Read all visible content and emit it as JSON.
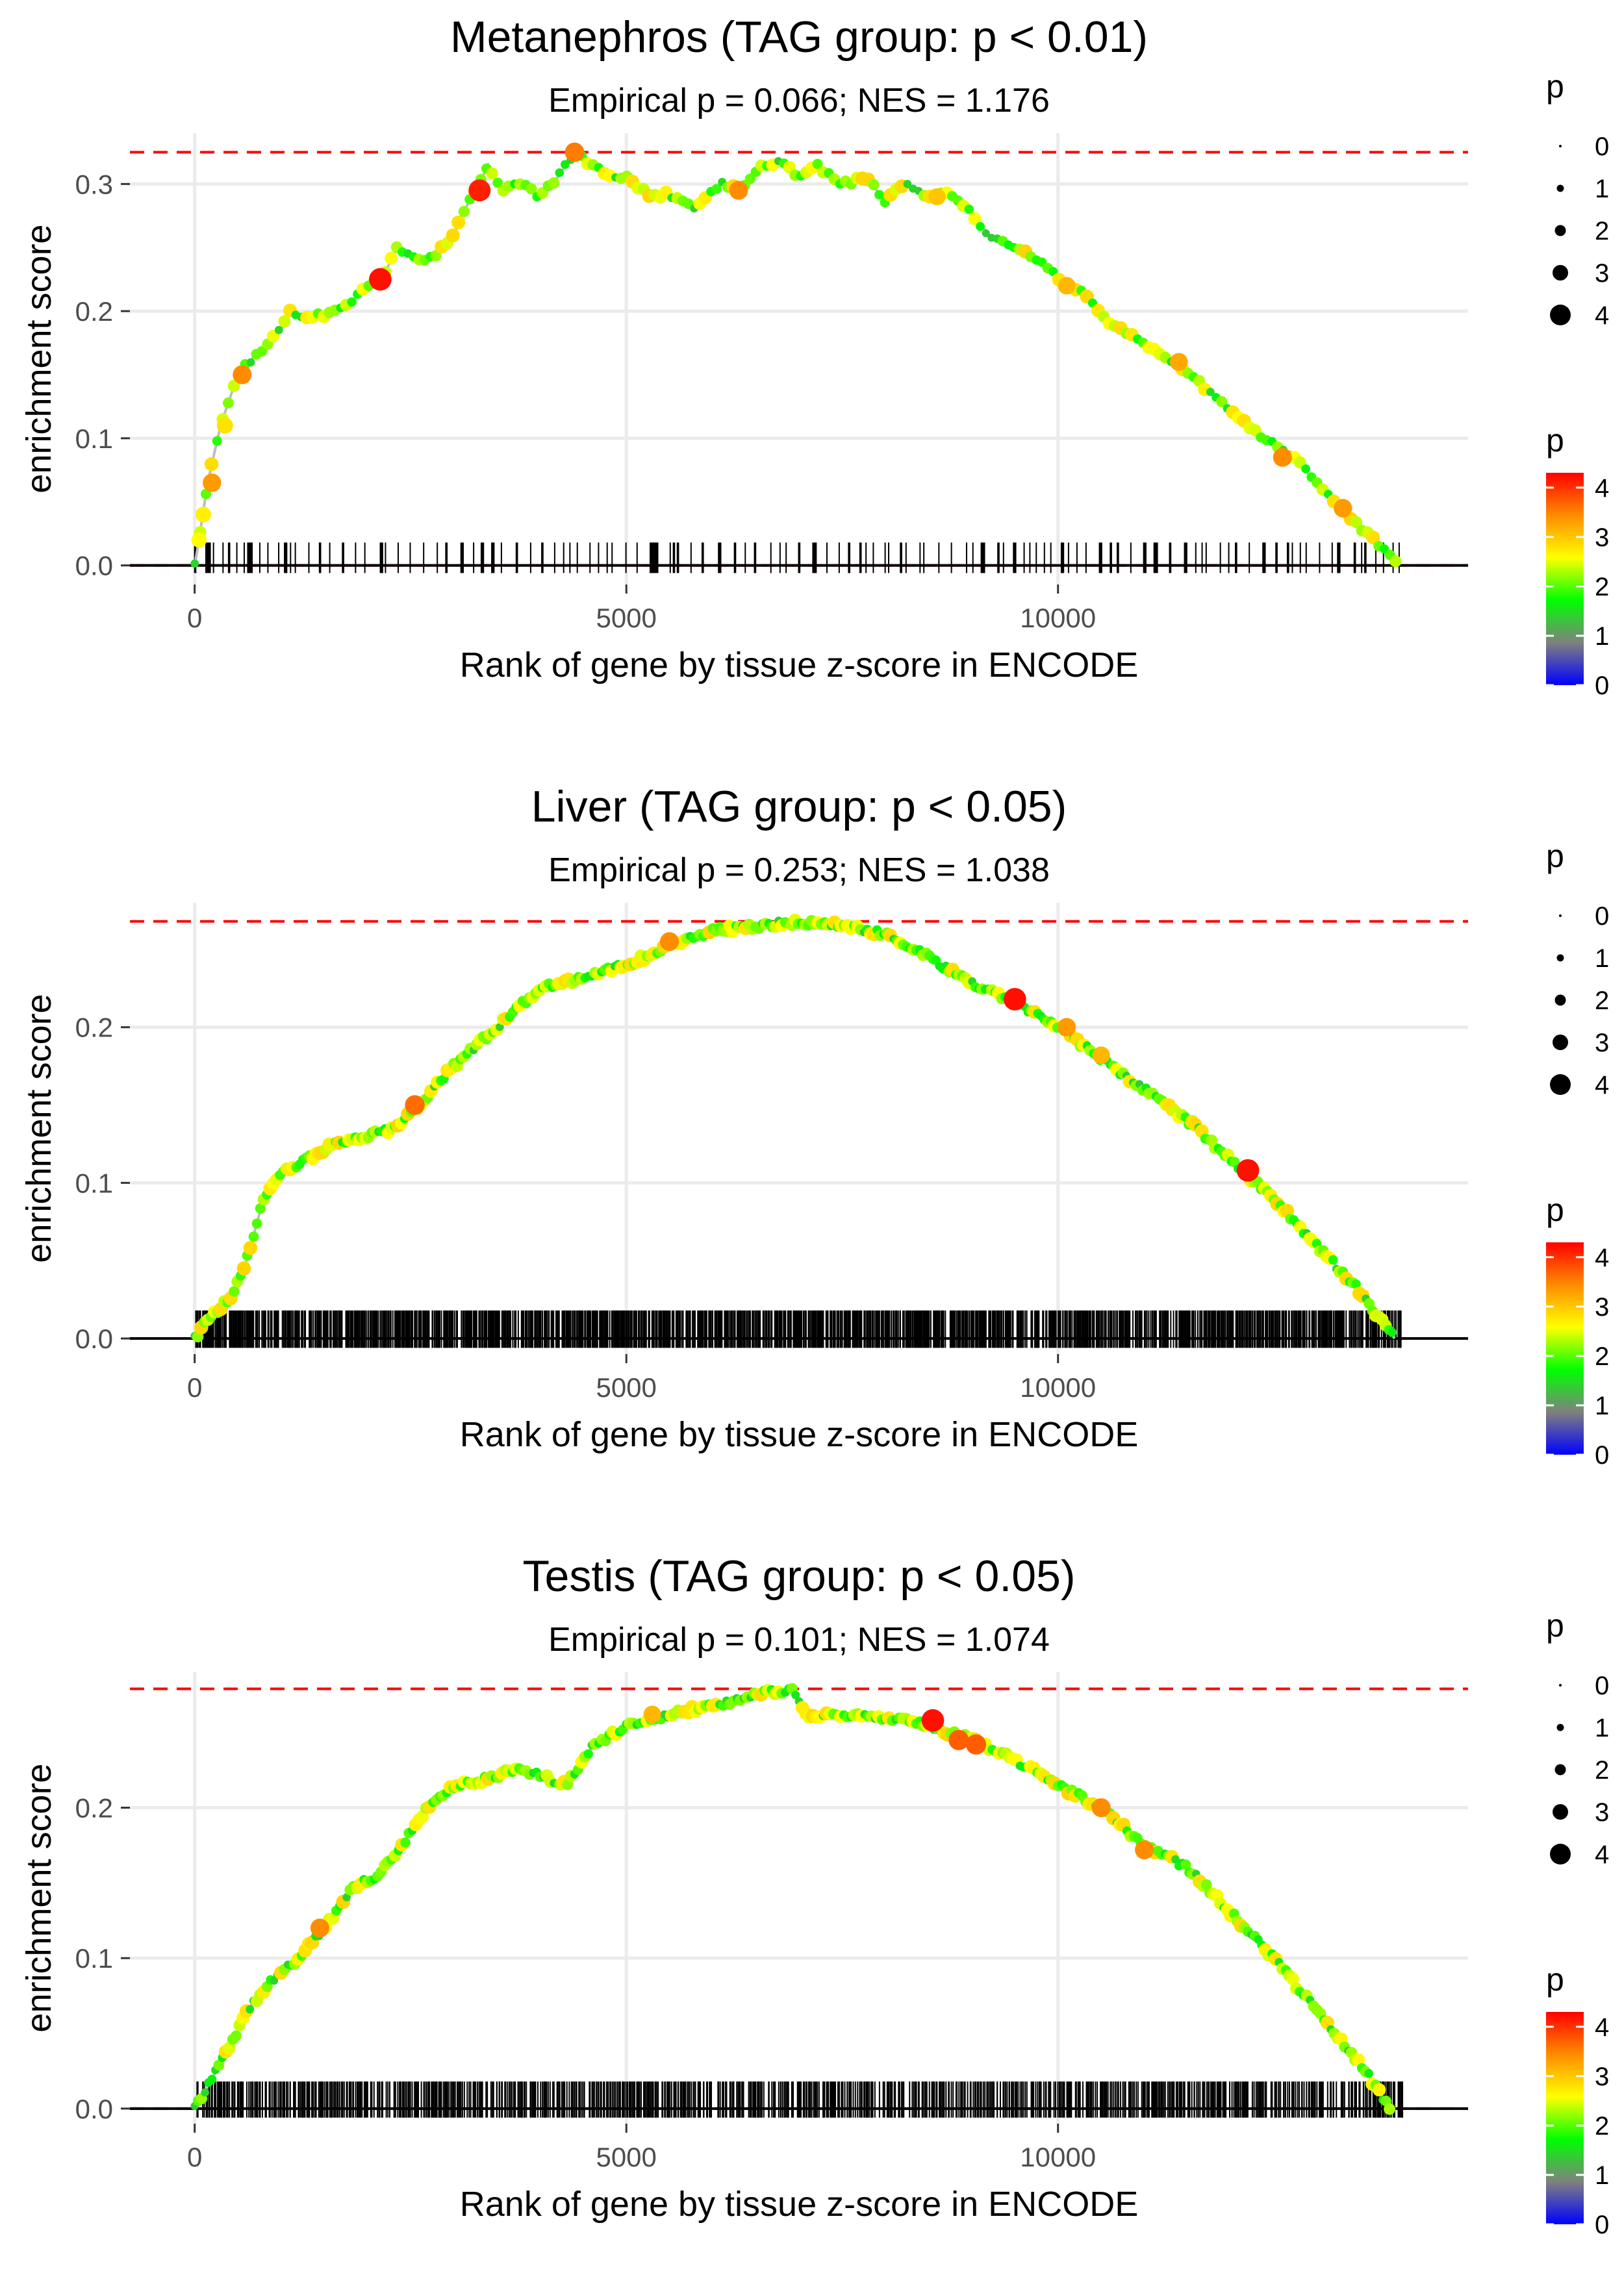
{
  "palette": {
    "ref_line": "#ff0000",
    "curve": "#bebebe",
    "grid": "#ebebeb",
    "axis_text": "#4d4d4d",
    "text": "#000000",
    "colorbar_stops": [
      "#0000ff",
      "#808080",
      "#00ff00",
      "#ffff00",
      "#ff8c00",
      "#ff0000"
    ]
  },
  "chart_data": [
    {
      "type": "line",
      "title": "Metanephros (TAG group: p < 0.01)",
      "subtitle": "Empirical p = 0.066; NES = 1.176",
      "xlabel": "Rank of gene by tissue z-score in ENCODE",
      "ylabel": "enrichment score",
      "xlim": [
        -750,
        14750
      ],
      "ylim": [
        -0.015,
        0.34
      ],
      "x_ticks": [
        0,
        5000,
        10000
      ],
      "x_tick_labels": [
        "0",
        "5000",
        "10000"
      ],
      "y_ticks": [
        0.0,
        0.1,
        0.2,
        0.3
      ],
      "y_tick_labels": [
        "0.0",
        "0.1",
        "0.2",
        "0.3"
      ],
      "max_es": 0.325,
      "min_es": 0.0,
      "n_genes": 14000,
      "n_hits": 170,
      "hit_sparsity": "sparse",
      "point_spacing": 65,
      "curve": [
        [
          0,
          0.0
        ],
        [
          50,
          0.02
        ],
        [
          150,
          0.065
        ],
        [
          300,
          0.11
        ],
        [
          500,
          0.15
        ],
        [
          700,
          0.165
        ],
        [
          1000,
          0.185
        ],
        [
          1100,
          0.2
        ],
        [
          1300,
          0.195
        ],
        [
          1600,
          0.198
        ],
        [
          1800,
          0.205
        ],
        [
          2000,
          0.22
        ],
        [
          2200,
          0.23
        ],
        [
          2350,
          0.25
        ],
        [
          2600,
          0.24
        ],
        [
          2800,
          0.245
        ],
        [
          3000,
          0.26
        ],
        [
          3200,
          0.29
        ],
        [
          3300,
          0.3
        ],
        [
          3400,
          0.315
        ],
        [
          3550,
          0.295
        ],
        [
          3800,
          0.3
        ],
        [
          4000,
          0.29
        ],
        [
          4200,
          0.305
        ],
        [
          4400,
          0.325
        ],
        [
          4700,
          0.31
        ],
        [
          5000,
          0.305
        ],
        [
          5300,
          0.29
        ],
        [
          5500,
          0.292
        ],
        [
          5800,
          0.28
        ],
        [
          6100,
          0.3
        ],
        [
          6300,
          0.295
        ],
        [
          6600,
          0.315
        ],
        [
          6800,
          0.318
        ],
        [
          7000,
          0.305
        ],
        [
          7200,
          0.315
        ],
        [
          7500,
          0.3
        ],
        [
          7800,
          0.305
        ],
        [
          8000,
          0.285
        ],
        [
          8200,
          0.3
        ],
        [
          8500,
          0.29
        ],
        [
          8700,
          0.295
        ],
        [
          8900,
          0.285
        ],
        [
          9200,
          0.26
        ],
        [
          9500,
          0.25
        ],
        [
          9800,
          0.24
        ],
        [
          10000,
          0.225
        ],
        [
          10300,
          0.215
        ],
        [
          10600,
          0.19
        ],
        [
          11000,
          0.175
        ],
        [
          11300,
          0.16
        ],
        [
          11700,
          0.14
        ],
        [
          12000,
          0.12
        ],
        [
          12400,
          0.1
        ],
        [
          12800,
          0.08
        ],
        [
          13200,
          0.05
        ],
        [
          13500,
          0.03
        ],
        [
          13800,
          0.01
        ],
        [
          13950,
          0.0
        ]
      ],
      "highlight_points": [
        [
          50,
          0.02,
          2.5
        ],
        [
          100,
          0.04,
          2.6
        ],
        [
          200,
          0.065,
          3.2
        ],
        [
          350,
          0.11,
          2.7
        ],
        [
          550,
          0.15,
          3.3
        ],
        [
          2150,
          0.225,
          4.1
        ],
        [
          3300,
          0.295,
          4.0
        ],
        [
          4400,
          0.325,
          3.4
        ],
        [
          6300,
          0.295,
          3.3
        ],
        [
          8600,
          0.29,
          2.9
        ],
        [
          10100,
          0.22,
          3.0
        ],
        [
          11400,
          0.16,
          3.1
        ],
        [
          12600,
          0.085,
          3.3
        ],
        [
          13300,
          0.045,
          3.2
        ]
      ],
      "legend_size_title": "p",
      "legend_size_labels": [
        "0",
        "1",
        "2",
        "3",
        "4"
      ],
      "legend_color_title": "p",
      "legend_color_labels": [
        "0",
        "1",
        "2",
        "3",
        "4"
      ]
    },
    {
      "type": "line",
      "title": "Liver (TAG group: p < 0.05)",
      "subtitle": "Empirical p = 0.253; NES = 1.038",
      "xlabel": "Rank of gene by tissue z-score in ENCODE",
      "ylabel": "enrichment score",
      "xlim": [
        -750,
        14750
      ],
      "ylim": [
        -0.01,
        0.28
      ],
      "x_ticks": [
        0,
        5000,
        10000
      ],
      "x_tick_labels": [
        "0",
        "5000",
        "10000"
      ],
      "y_ticks": [
        0.0,
        0.1,
        0.2
      ],
      "y_tick_labels": [
        "0.0",
        "0.1",
        "0.2"
      ],
      "max_es": 0.268,
      "min_es": 0.0,
      "n_genes": 14000,
      "n_hits": 1300,
      "hit_sparsity": "dense",
      "point_spacing": 38,
      "curve": [
        [
          0,
          0.0
        ],
        [
          200,
          0.015
        ],
        [
          400,
          0.025
        ],
        [
          600,
          0.05
        ],
        [
          800,
          0.09
        ],
        [
          1000,
          0.105
        ],
        [
          1300,
          0.115
        ],
        [
          1600,
          0.125
        ],
        [
          2000,
          0.13
        ],
        [
          2300,
          0.135
        ],
        [
          2600,
          0.15
        ],
        [
          3000,
          0.175
        ],
        [
          3300,
          0.19
        ],
        [
          3700,
          0.21
        ],
        [
          4000,
          0.225
        ],
        [
          4500,
          0.232
        ],
        [
          5000,
          0.24
        ],
        [
          5500,
          0.252
        ],
        [
          6000,
          0.262
        ],
        [
          6500,
          0.265
        ],
        [
          7000,
          0.268
        ],
        [
          7500,
          0.265
        ],
        [
          8000,
          0.26
        ],
        [
          8500,
          0.245
        ],
        [
          9000,
          0.228
        ],
        [
          9500,
          0.215
        ],
        [
          10000,
          0.2
        ],
        [
          10500,
          0.18
        ],
        [
          11000,
          0.16
        ],
        [
          11500,
          0.14
        ],
        [
          12000,
          0.115
        ],
        [
          12500,
          0.09
        ],
        [
          13000,
          0.06
        ],
        [
          13500,
          0.03
        ],
        [
          13900,
          0.0
        ]
      ],
      "highlight_points": [
        [
          2550,
          0.15,
          3.5
        ],
        [
          5500,
          0.255,
          3.3
        ],
        [
          9500,
          0.218,
          4.1
        ],
        [
          10100,
          0.2,
          3.2
        ],
        [
          10500,
          0.182,
          3.0
        ],
        [
          12200,
          0.108,
          4.1
        ]
      ],
      "legend_size_title": "p",
      "legend_size_labels": [
        "0",
        "1",
        "2",
        "3",
        "4"
      ],
      "legend_color_title": "p",
      "legend_color_labels": [
        "0",
        "1",
        "2",
        "3",
        "4"
      ]
    },
    {
      "type": "line",
      "title": "Testis (TAG group: p < 0.05)",
      "subtitle": "Empirical p = 0.101; NES = 1.074",
      "xlabel": "Rank of gene by tissue z-score in ENCODE",
      "ylabel": "enrichment score",
      "xlim": [
        -750,
        14750
      ],
      "ylim": [
        -0.01,
        0.29
      ],
      "x_ticks": [
        0,
        5000,
        10000
      ],
      "x_tick_labels": [
        "0",
        "5000",
        "10000"
      ],
      "y_ticks": [
        0.0,
        0.1,
        0.2
      ],
      "y_tick_labels": [
        "0.0",
        "0.1",
        "0.2"
      ],
      "max_es": 0.279,
      "min_es": 0.0,
      "n_genes": 14000,
      "n_hits": 1000,
      "hit_sparsity": "dense",
      "point_spacing": 40,
      "curve": [
        [
          0,
          0.0
        ],
        [
          200,
          0.02
        ],
        [
          400,
          0.04
        ],
        [
          600,
          0.065
        ],
        [
          900,
          0.085
        ],
        [
          1200,
          0.1
        ],
        [
          1500,
          0.12
        ],
        [
          1800,
          0.145
        ],
        [
          2100,
          0.155
        ],
        [
          2400,
          0.175
        ],
        [
          2700,
          0.2
        ],
        [
          3000,
          0.215
        ],
        [
          3300,
          0.218
        ],
        [
          3700,
          0.225
        ],
        [
          4000,
          0.222
        ],
        [
          4300,
          0.215
        ],
        [
          4600,
          0.24
        ],
        [
          5000,
          0.255
        ],
        [
          5500,
          0.262
        ],
        [
          6000,
          0.268
        ],
        [
          6500,
          0.275
        ],
        [
          6900,
          0.279
        ],
        [
          7100,
          0.262
        ],
        [
          7500,
          0.262
        ],
        [
          8000,
          0.26
        ],
        [
          8500,
          0.255
        ],
        [
          9000,
          0.245
        ],
        [
          9400,
          0.235
        ],
        [
          10000,
          0.215
        ],
        [
          10500,
          0.2
        ],
        [
          11000,
          0.175
        ],
        [
          11500,
          0.16
        ],
        [
          12000,
          0.13
        ],
        [
          12500,
          0.1
        ],
        [
          13000,
          0.065
        ],
        [
          13500,
          0.03
        ],
        [
          13850,
          0.0
        ]
      ],
      "highlight_points": [
        [
          1450,
          0.12,
          3.3
        ],
        [
          5300,
          0.262,
          3.0
        ],
        [
          8550,
          0.258,
          4.1
        ],
        [
          8850,
          0.245,
          3.6
        ],
        [
          9050,
          0.242,
          3.6
        ],
        [
          10500,
          0.2,
          3.3
        ],
        [
          11000,
          0.172,
          3.3
        ]
      ],
      "legend_size_title": "p",
      "legend_size_labels": [
        "0",
        "1",
        "2",
        "3",
        "4"
      ],
      "legend_color_title": "p",
      "legend_color_labels": [
        "0",
        "1",
        "2",
        "3",
        "4"
      ]
    }
  ]
}
